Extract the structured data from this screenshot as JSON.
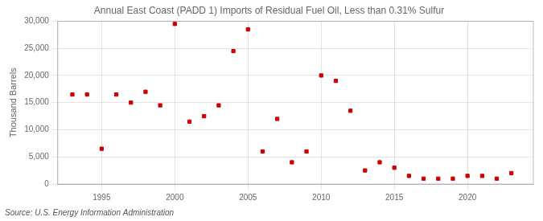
{
  "chart_data": {
    "type": "scatter",
    "title": "Annual East Coast (PADD 1) Imports of Residual Fuel Oil, Less than 0.31% Sulfur",
    "ylabel": "Thousand Barrels",
    "annotations": [
      "Source: U.S. Energy Information Administration"
    ],
    "x": [
      1993,
      1994,
      1995,
      1996,
      1997,
      1998,
      1999,
      2000,
      2001,
      2002,
      2003,
      2004,
      2005,
      2006,
      2007,
      2008,
      2009,
      2010,
      2011,
      2012,
      2013,
      2014,
      2015,
      2016,
      2017,
      2018,
      2019,
      2020,
      2021,
      2022,
      2023
    ],
    "values": [
      16500,
      16500,
      6500,
      16500,
      15000,
      17000,
      14500,
      29500,
      11500,
      12500,
      14500,
      24500,
      28500,
      6000,
      12000,
      4000,
      6000,
      20000,
      19000,
      13500,
      2500,
      4000,
      3000,
      1500,
      1000,
      1000,
      1000,
      1500,
      1500,
      1000,
      2000
    ],
    "color": "#cc0000",
    "marker": "square",
    "xlim": [
      1992,
      2024.5
    ],
    "xticks": [
      1995,
      2000,
      2005,
      2010,
      2015,
      2020
    ],
    "ylim": [
      0,
      30000
    ],
    "yticks": [
      0,
      {
        "value": 5000,
        "label": "5,000"
      },
      {
        "value": 10000,
        "label": "10,000"
      },
      {
        "value": 15000,
        "label": "15,000"
      },
      {
        "value": 20000,
        "label": "20,000"
      },
      {
        "value": 25000,
        "label": "25,000"
      },
      {
        "value": 30000,
        "label": "30,000"
      }
    ],
    "grid": true
  }
}
